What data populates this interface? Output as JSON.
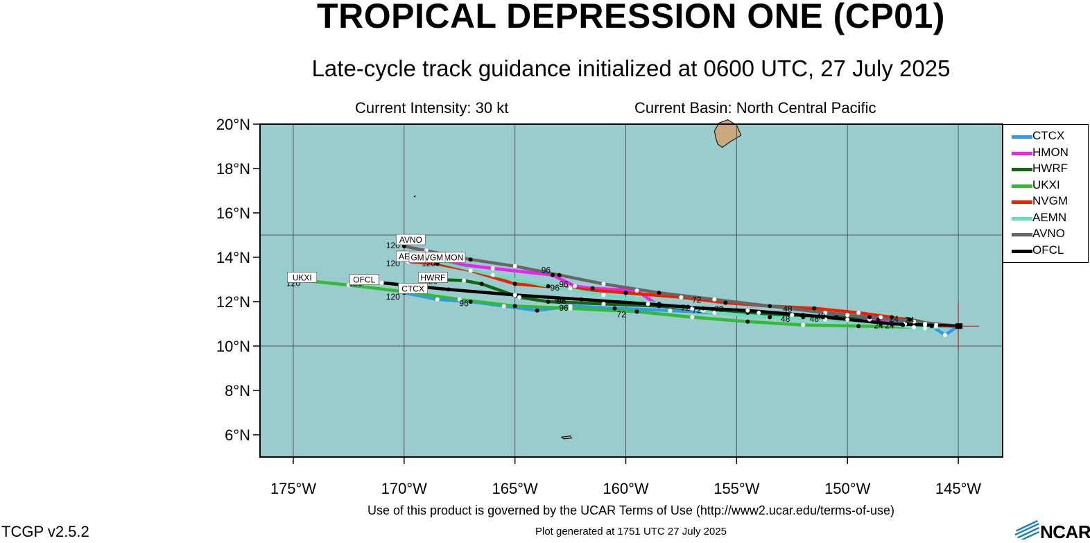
{
  "header": {
    "title": "TROPICAL DEPRESSION ONE (CP01)",
    "subtitle": "Late-cycle track guidance initialized at 0600 UTC, 27 July 2025",
    "intensity": "Current Intensity: 30 kt",
    "basin": "Current Basin: North Central Pacific"
  },
  "map": {
    "lon_range": [
      -176.5,
      -143.0
    ],
    "lat_range": [
      5.0,
      20.0
    ],
    "x_ticks": [
      {
        "value": -175,
        "label": "175°W"
      },
      {
        "value": -170,
        "label": "170°W"
      },
      {
        "value": -165,
        "label": "165°W"
      },
      {
        "value": -160,
        "label": "160°W"
      },
      {
        "value": -155,
        "label": "155°W"
      },
      {
        "value": -150,
        "label": "150°W"
      },
      {
        "value": -145,
        "label": "145°W"
      }
    ],
    "y_ticks": [
      {
        "value": 20,
        "label": "20°N"
      },
      {
        "value": 18,
        "label": "18°N"
      },
      {
        "value": 16,
        "label": "16°N"
      },
      {
        "value": 14,
        "label": "14°N"
      },
      {
        "value": 12,
        "label": "12°N"
      },
      {
        "value": 10,
        "label": "10°N"
      },
      {
        "value": 8,
        "label": "8°N"
      },
      {
        "value": 6,
        "label": "6°N"
      }
    ],
    "grid_lons": [
      -175,
      -170,
      -165,
      -160,
      -155,
      -150,
      -145
    ],
    "grid_lats": [
      15,
      10
    ],
    "ocean_color": "#99cdcd",
    "land_color": "#c9a97d",
    "current_position": {
      "lon": -145.0,
      "lat": 10.9
    },
    "land": [
      {
        "name": "hawaii-island",
        "points": [
          [
            -156.0,
            19.7
          ],
          [
            -155.8,
            20.05
          ],
          [
            -155.4,
            20.2
          ],
          [
            -155.0,
            19.95
          ],
          [
            -154.8,
            19.5
          ],
          [
            -155.3,
            19.2
          ],
          [
            -155.65,
            18.95
          ],
          [
            -155.85,
            19.1
          ],
          [
            -155.95,
            19.4
          ]
        ]
      },
      {
        "name": "johnston-atoll",
        "points": [
          [
            -169.55,
            16.73
          ],
          [
            -169.5,
            16.76
          ],
          [
            -169.52,
            16.72
          ]
        ]
      },
      {
        "name": "palmyra-atoll",
        "points": [
          [
            -162.9,
            5.9
          ],
          [
            -162.5,
            5.95
          ],
          [
            -162.45,
            5.85
          ],
          [
            -162.8,
            5.82
          ]
        ]
      }
    ]
  },
  "chart_data": {
    "type": "map-tracks",
    "series": [
      {
        "name": "CTCX",
        "color": "#3399ee",
        "points": [
          [
            -145.0,
            10.9
          ],
          [
            -145.6,
            10.5
          ],
          [
            -146.2,
            10.9
          ],
          [
            -147.4,
            11.0
          ],
          [
            -148.6,
            11.2
          ],
          [
            -150.0,
            11.4
          ],
          [
            -152.0,
            11.3
          ],
          [
            -154.0,
            11.5
          ],
          [
            -156.0,
            11.5
          ],
          [
            -158.0,
            11.6
          ],
          [
            -160.5,
            11.7
          ],
          [
            -162.5,
            11.8
          ],
          [
            -164.0,
            11.6
          ],
          [
            -165.5,
            11.8
          ],
          [
            -167.0,
            12.0
          ],
          [
            -168.5,
            12.1
          ],
          [
            -170.0,
            12.4
          ]
        ],
        "hour_labels": [
          {
            "text": "24",
            "lon": -148.1,
            "lat": 10.8
          },
          {
            "text": "48",
            "lon": -152.8,
            "lat": 11.1
          },
          {
            "text": "96",
            "lon": -167.3,
            "lat": 11.8
          },
          {
            "text": "120",
            "lon": -170.5,
            "lat": 12.1
          }
        ],
        "end_label": {
          "text": "CTCX",
          "lon": -169.6,
          "lat": 12.55
        }
      },
      {
        "name": "HMON",
        "color": "#ee22ee",
        "points": [
          [
            -145.0,
            10.9
          ],
          [
            -146.0,
            10.9
          ],
          [
            -147.5,
            10.95
          ],
          [
            -149.0,
            11.2
          ],
          [
            -150.5,
            11.3
          ],
          [
            -152.5,
            11.4
          ],
          [
            -154.5,
            11.6
          ],
          [
            -157.0,
            11.7
          ],
          [
            -158.5,
            11.8
          ],
          [
            -159.5,
            12.5
          ],
          [
            -161.5,
            12.6
          ],
          [
            -162.3,
            12.7
          ],
          [
            -163.3,
            13.2
          ],
          [
            -166.0,
            13.5
          ],
          [
            -168.5,
            13.8
          ],
          [
            -169.5,
            13.95
          ]
        ],
        "hour_labels": [
          {
            "text": "24",
            "lon": -147.9,
            "lat": 11.1
          },
          {
            "text": "72",
            "lon": -157.3,
            "lat": 11.6
          },
          {
            "text": "96",
            "lon": -163.6,
            "lat": 13.3
          },
          {
            "text": "120",
            "lon": -168.9,
            "lat": 13.6
          }
        ],
        "end_label": {
          "text": "HMON",
          "lon": -167.9,
          "lat": 13.95
        }
      },
      {
        "name": "HWRF",
        "color": "#116611",
        "points": [
          [
            -145.0,
            10.9
          ],
          [
            -146.0,
            10.95
          ],
          [
            -147.2,
            11.2
          ],
          [
            -148.5,
            11.3
          ],
          [
            -150.5,
            11.3
          ],
          [
            -152.5,
            11.4
          ],
          [
            -154.5,
            11.5
          ],
          [
            -156.5,
            11.6
          ],
          [
            -158.5,
            11.8
          ],
          [
            -161.0,
            11.9
          ],
          [
            -163.5,
            12.0
          ],
          [
            -164.8,
            12.2
          ],
          [
            -166.5,
            12.8
          ],
          [
            -167.3,
            12.95
          ],
          [
            -168.5,
            13.0
          ]
        ],
        "hour_labels": [
          {
            "text": "24",
            "lon": -147.2,
            "lat": 11.05
          },
          {
            "text": "48",
            "lon": -151.2,
            "lat": 11.2
          },
          {
            "text": "72",
            "lon": -156.8,
            "lat": 11.5
          },
          {
            "text": "96",
            "lon": -162.9,
            "lat": 11.9
          },
          {
            "text": "120",
            "lon": -168.8,
            "lat": 12.8
          }
        ],
        "end_label": {
          "text": "HWRF",
          "lon": -168.7,
          "lat": 13.05
        }
      },
      {
        "name": "UKXI",
        "color": "#33bb33",
        "points": [
          [
            -145.0,
            10.9
          ],
          [
            -147.0,
            10.85
          ],
          [
            -149.5,
            10.9
          ],
          [
            -152.0,
            10.95
          ],
          [
            -154.5,
            11.1
          ],
          [
            -157.0,
            11.3
          ],
          [
            -159.5,
            11.55
          ],
          [
            -162.5,
            11.7
          ],
          [
            -165.0,
            11.8
          ],
          [
            -167.5,
            12.1
          ],
          [
            -170.0,
            12.45
          ],
          [
            -172.5,
            12.75
          ],
          [
            -175.0,
            13.0
          ]
        ],
        "hour_labels": [
          {
            "text": "24",
            "lon": -148.6,
            "lat": 10.8
          },
          {
            "text": "72",
            "lon": -160.2,
            "lat": 11.3
          },
          {
            "text": "96",
            "lon": -162.8,
            "lat": 11.6
          },
          {
            "text": "120",
            "lon": -175.0,
            "lat": 12.7
          }
        ],
        "end_label": {
          "text": "UKXI",
          "lon": -174.6,
          "lat": 13.05
        }
      },
      {
        "name": "NVGM",
        "color": "#ee2200",
        "points": [
          [
            -145.0,
            10.9
          ],
          [
            -146.5,
            11.0
          ],
          [
            -148.0,
            11.3
          ],
          [
            -149.5,
            11.5
          ],
          [
            -151.5,
            11.7
          ],
          [
            -153.5,
            11.8
          ],
          [
            -155.5,
            11.95
          ],
          [
            -157.5,
            12.2
          ],
          [
            -160.0,
            12.4
          ],
          [
            -162.5,
            12.6
          ],
          [
            -165.0,
            12.8
          ],
          [
            -167.0,
            13.4
          ],
          [
            -168.5,
            13.7
          ],
          [
            -169.8,
            13.8
          ]
        ],
        "hour_labels": [
          {
            "text": "48",
            "lon": -152.7,
            "lat": 11.55
          },
          {
            "text": "96",
            "lon": -163.2,
            "lat": 12.5
          }
        ],
        "end_label": {
          "text": "NVGM",
          "lon": -168.8,
          "lat": 13.95
        }
      },
      {
        "name": "AEMN",
        "color": "#66ddbb",
        "points": [
          [
            -145.0,
            10.9
          ],
          [
            -146.5,
            10.8
          ],
          [
            -148.5,
            11.0
          ],
          [
            -151.0,
            11.2
          ],
          [
            -153.5,
            11.3
          ],
          [
            -156.0,
            11.5
          ],
          [
            -158.5,
            11.9
          ],
          [
            -161.0,
            12.3
          ],
          [
            -163.5,
            12.7
          ],
          [
            -166.0,
            13.2
          ],
          [
            -168.5,
            13.8
          ],
          [
            -170.0,
            13.9
          ]
        ],
        "hour_labels": [
          {
            "text": "72",
            "lon": -156.8,
            "lat": 11.95
          },
          {
            "text": "96",
            "lon": -162.8,
            "lat": 12.65
          },
          {
            "text": "120",
            "lon": -170.5,
            "lat": 13.6
          }
        ],
        "end_label": {
          "text": "AEMN",
          "lon": -169.7,
          "lat": 14.0
        }
      },
      {
        "name": "AVNO",
        "color": "#666666",
        "points": [
          [
            -145.0,
            10.9
          ],
          [
            -147.0,
            11.1
          ],
          [
            -149.0,
            11.3
          ],
          [
            -151.0,
            11.5
          ],
          [
            -153.5,
            11.8
          ],
          [
            -156.0,
            12.1
          ],
          [
            -158.5,
            12.4
          ],
          [
            -161.0,
            12.8
          ],
          [
            -163.0,
            13.2
          ],
          [
            -165.0,
            13.6
          ],
          [
            -167.0,
            13.9
          ],
          [
            -169.0,
            14.3
          ],
          [
            -170.0,
            14.5
          ]
        ],
        "hour_labels": [
          {
            "text": "120",
            "lon": -170.5,
            "lat": 14.4
          }
        ],
        "end_label": {
          "text": "AVNO",
          "lon": -169.7,
          "lat": 14.75
        }
      },
      {
        "name": "OFCL",
        "color": "#000000",
        "points": [
          [
            -145.0,
            10.9
          ],
          [
            -146.5,
            10.95
          ],
          [
            -148.0,
            11.0
          ],
          [
            -150.0,
            11.2
          ],
          [
            -152.0,
            11.4
          ],
          [
            -154.5,
            11.6
          ],
          [
            -156.5,
            11.7
          ],
          [
            -159.0,
            11.9
          ],
          [
            -162.0,
            12.1
          ],
          [
            -165.0,
            12.3
          ],
          [
            -168.0,
            12.55
          ],
          [
            -171.0,
            12.85
          ]
        ],
        "hour_labels": [
          {
            "text": "48",
            "lon": -151.5,
            "lat": 11.1
          },
          {
            "text": "72",
            "lon": -155.8,
            "lat": 11.55
          },
          {
            "text": "96",
            "lon": -163.0,
            "lat": 11.95
          },
          {
            "text": "120",
            "lon": -172.2,
            "lat": 12.7
          }
        ],
        "end_label": {
          "text": "OFCL",
          "lon": -171.8,
          "lat": 12.95
        }
      }
    ],
    "partial_label": {
      "text": "GM",
      "lon": -169.4,
      "lat": 13.95
    }
  },
  "legend": [
    {
      "label": "CTCX",
      "color": "#3399ee"
    },
    {
      "label": "HMON",
      "color": "#ee22ee"
    },
    {
      "label": "HWRF",
      "color": "#116611"
    },
    {
      "label": "UKXI",
      "color": "#33bb33"
    },
    {
      "label": "NVGM",
      "color": "#ee2200"
    },
    {
      "label": "AEMN",
      "color": "#66ddbb"
    },
    {
      "label": "AVNO",
      "color": "#666666"
    },
    {
      "label": "OFCL",
      "color": "#000000"
    }
  ],
  "footer": {
    "terms": "Use of this product is governed by the UCAR Terms of Use (http://www2.ucar.edu/terms-of-use)",
    "generated": "Plot generated at 1751 UTC   27 July 2025",
    "version": "TCGP v2.5.2",
    "logo_text": "NCAR"
  }
}
